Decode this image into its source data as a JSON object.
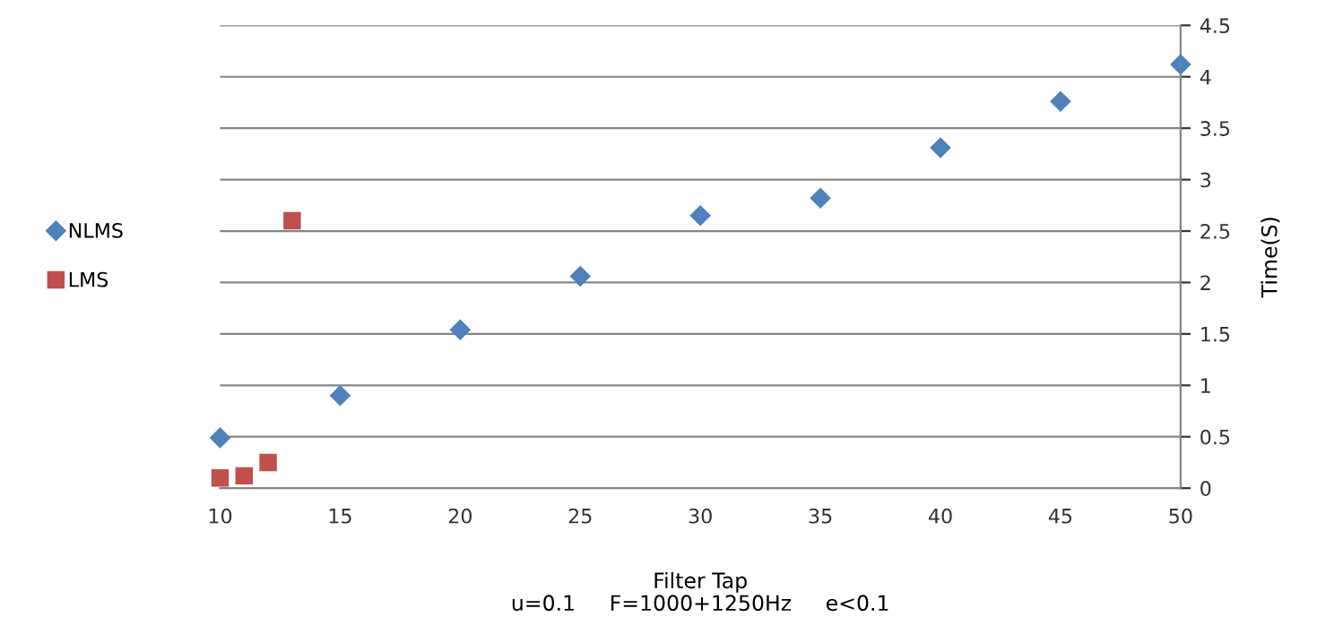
{
  "chart_data": {
    "type": "scatter",
    "xlabel": "Filter Tap",
    "ylabel": "Time(S)",
    "annotations": [
      "u=0.1     F=1000+1250Hz     e<0.1"
    ],
    "series": [
      {
        "name": "NLMS",
        "color": "#4f81bd",
        "marker": "diamond",
        "x": [
          10,
          15,
          20,
          25,
          30,
          35,
          40,
          45,
          50
        ],
        "values": [
          0.49,
          0.9,
          1.54,
          2.06,
          2.65,
          2.82,
          3.31,
          3.76,
          4.12
        ]
      },
      {
        "name": "LMS",
        "color": "#c0504d",
        "marker": "square",
        "x": [
          10,
          11,
          12,
          13
        ],
        "values": [
          0.1,
          0.12,
          0.25,
          2.6
        ]
      }
    ],
    "xlim": [
      10,
      50
    ],
    "xticks": [
      10,
      15,
      20,
      25,
      30,
      35,
      40,
      45,
      50
    ],
    "ylim": [
      0,
      4.5
    ],
    "yticks": [
      0,
      0.5,
      1,
      1.5,
      2,
      2.5,
      3,
      3.5,
      4,
      4.5
    ],
    "grid": "y",
    "legend": "left"
  }
}
